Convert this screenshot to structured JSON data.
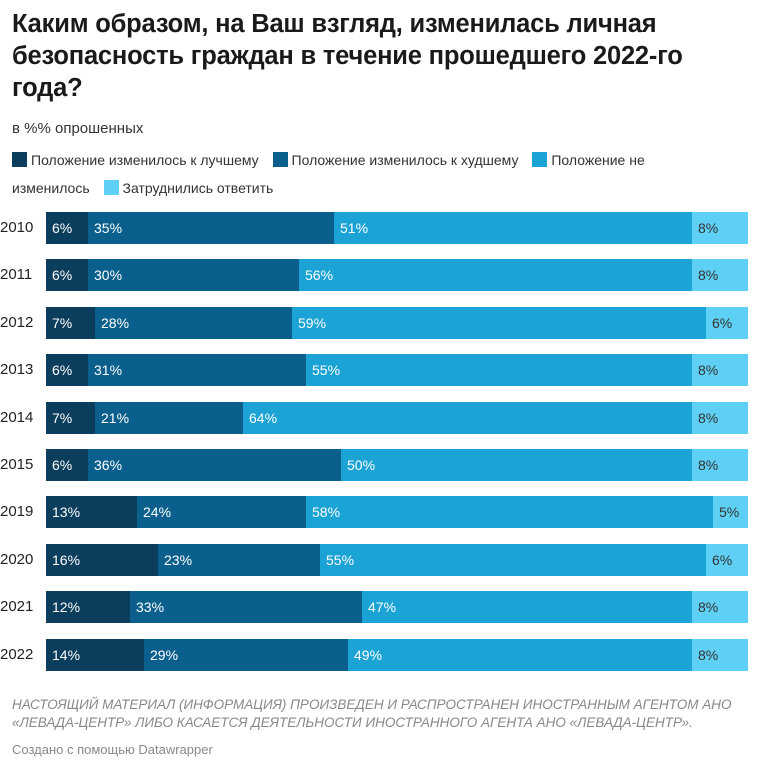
{
  "title": "Каким образом, на Ваш взгляд, изменилась личная безопасность граждан в течение прошедшего 2022-го года?",
  "subtitle": "в %% опрошенных",
  "legend": [
    {
      "label": "Положение изменилось к лучшему",
      "color": "#0b3d5c"
    },
    {
      "label": "Положение изменилось к худшему",
      "color": "#0a5f8c"
    },
    {
      "label": "Положение не изменилось",
      "color": "#1aa3d4"
    },
    {
      "label": "Затруднились ответить",
      "color": "#5fd0f5"
    }
  ],
  "chart_data": {
    "type": "bar",
    "orientation": "horizontal",
    "stacked": true,
    "categories": [
      "2010",
      "2011",
      "2012",
      "2013",
      "2014",
      "2015",
      "2019",
      "2020",
      "2021",
      "2022"
    ],
    "series": [
      {
        "name": "Положение изменилось к лучшему",
        "values": [
          6,
          6,
          7,
          6,
          7,
          6,
          13,
          16,
          12,
          14
        ],
        "color": "#0b3d5c"
      },
      {
        "name": "Положение изменилось к худшему",
        "values": [
          35,
          30,
          28,
          31,
          21,
          36,
          24,
          23,
          33,
          29
        ],
        "color": "#0a5f8c"
      },
      {
        "name": "Положение не изменилось",
        "values": [
          51,
          56,
          59,
          55,
          64,
          50,
          58,
          55,
          47,
          49
        ],
        "color": "#1aa3d4"
      },
      {
        "name": "Затруднились ответить",
        "values": [
          8,
          8,
          6,
          8,
          8,
          8,
          5,
          6,
          8,
          8
        ],
        "color": "#5fd0f5"
      }
    ],
    "value_suffix": "%",
    "xlim": [
      0,
      100
    ],
    "legend_position": "top-left"
  },
  "footer": {
    "note": "НАСТОЯЩИЙ МАТЕРИАЛ (ИНФОРМАЦИЯ) ПРОИЗВЕДЕН И РАСПРОСТРАНЕН ИНОСТРАННЫМ АГЕНТОМ АНО «ЛЕВАДА-ЦЕНТР» ЛИБО КАСАЕТСЯ ДЕЯТЕЛЬНОСТИ ИНОСТРАННОГО АГЕНТА АНО «ЛЕВАДА-ЦЕНТР».",
    "credit": "Создано с помощью Datawrapper"
  }
}
